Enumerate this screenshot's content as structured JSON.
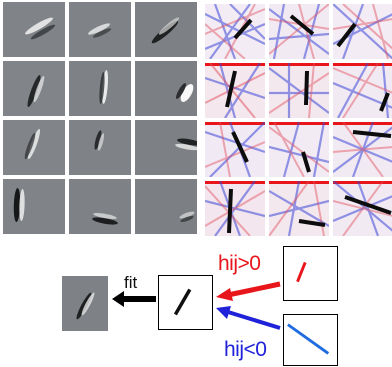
{
  "labels": {
    "fit": "fit",
    "hij_positive": "hij>0",
    "hij_negative": "hij<0"
  },
  "colors": {
    "positive": "#e8161b",
    "negative": "#1f22d9",
    "filter_gray": "#7d8084",
    "stroke_dark": "#111111"
  },
  "grids": {
    "rows": 4,
    "columns": 3
  }
}
